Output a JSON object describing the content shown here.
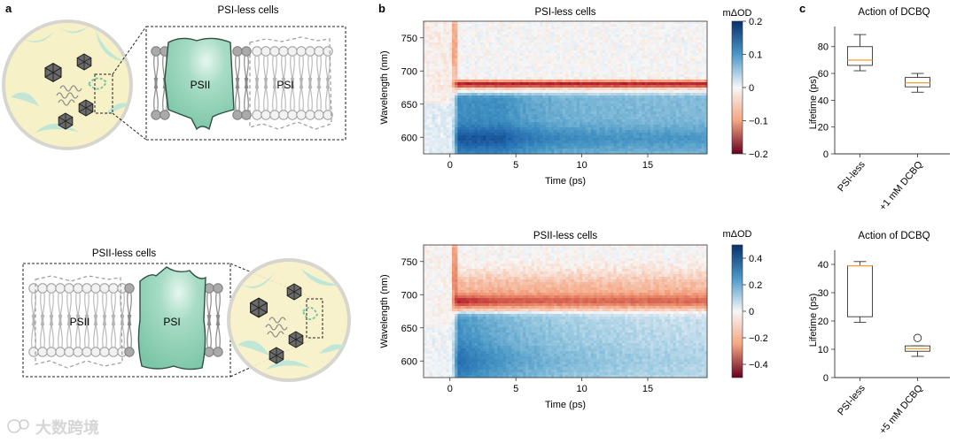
{
  "panels": {
    "a": "a",
    "b": "b",
    "c": "c"
  },
  "colors": {
    "protein": "#8fd0b5",
    "cell": "#f7f1c8",
    "cellRing": "#d6d6d0",
    "thylakoid": "#bfe6d6",
    "orange": "#f5a340"
  },
  "diagram": {
    "top_title": "PSI-less cells",
    "top_protein": "PSII",
    "top_ghost": "PSI",
    "bottom_title": "PSII-less cells",
    "bottom_protein": "PSI",
    "bottom_ghost": "PSII"
  },
  "watermark": "大数跨境",
  "chart_data": [
    {
      "type": "heatmap",
      "title": "PSI-less cells",
      "xlabel": "Time (ps)",
      "ylabel": "Wavelength (nm)",
      "xlim": [
        -2,
        19.5
      ],
      "ylim": [
        575,
        775
      ],
      "xticks": [
        0,
        5,
        10,
        15
      ],
      "yticks": [
        600,
        650,
        700,
        750
      ],
      "colorbar": {
        "label": "mΔOD",
        "min": -0.2,
        "max": 0.2,
        "ticks": [
          "0.2",
          "0.1",
          "0",
          "−0.1",
          "−0.2"
        ],
        "values": [
          0.2,
          0.1,
          0,
          -0.1,
          -0.2
        ]
      },
      "features": {
        "negative_band_nm": 680,
        "negative_peak": -0.15,
        "positive_region_nm": [
          575,
          668
        ],
        "positive_peak": 0.17
      }
    },
    {
      "type": "heatmap",
      "title": "PSII-less cells",
      "xlabel": "Time (ps)",
      "ylabel": "Wavelength (nm)",
      "xlim": [
        -2,
        19.5
      ],
      "ylim": [
        575,
        775
      ],
      "xticks": [
        0,
        5,
        10,
        15
      ],
      "yticks": [
        600,
        650,
        700,
        750
      ],
      "colorbar": {
        "label": "mΔOD",
        "min": -0.5,
        "max": 0.5,
        "ticks": [
          "0.4",
          "0.2",
          "0",
          "−0.2",
          "−0.4"
        ],
        "values": [
          0.4,
          0.2,
          0,
          -0.2,
          -0.4
        ]
      },
      "features": {
        "negative_band_nm": 690,
        "negative_peak": -0.3,
        "positive_region_nm": [
          575,
          675
        ],
        "positive_peak": 0.45
      }
    },
    {
      "type": "box",
      "title": "Action of DCBQ",
      "ylabel": "Lifetime (ps)",
      "ylim": [
        0,
        95
      ],
      "yticks": [
        0,
        20,
        40,
        60,
        80
      ],
      "categories": [
        "PSI-less",
        "+1 mM DCBQ"
      ],
      "boxes": [
        {
          "whislo": 62,
          "q1": 66,
          "med": 70,
          "q3": 80,
          "whishi": 89
        },
        {
          "whislo": 46,
          "q1": 50,
          "med": 53,
          "q3": 57,
          "whishi": 60
        }
      ]
    },
    {
      "type": "box",
      "title": "Action of DCBQ",
      "ylabel": "Lifetime (ps)",
      "ylim": [
        0,
        45
      ],
      "yticks": [
        0,
        10,
        20,
        30,
        40
      ],
      "categories": [
        "PSI-less",
        "+5 mM DCBQ"
      ],
      "boxes": [
        {
          "whislo": 19.5,
          "q1": 21.5,
          "med": 39.5,
          "q3": 39.5,
          "whishi": 41
        },
        {
          "whislo": 7.5,
          "q1": 9.3,
          "med": 10.2,
          "q3": 11.2,
          "whishi": 11.2,
          "fliers": [
            14
          ]
        }
      ]
    }
  ]
}
